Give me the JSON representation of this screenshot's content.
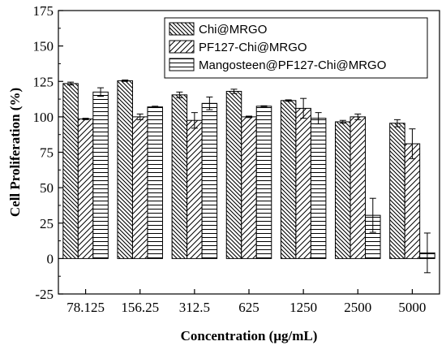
{
  "chart_data": {
    "type": "bar",
    "xlabel": "Concentration (μg/mL)",
    "ylabel": "Cell Proliferation (%)",
    "ylim": [
      -25,
      175
    ],
    "yticks": [
      -25,
      0,
      25,
      50,
      75,
      100,
      125,
      150,
      175
    ],
    "categories": [
      "78.125",
      "156.25",
      "312.5",
      "625",
      "1250",
      "2500",
      "5000"
    ],
    "legend_position": "top-right",
    "series": [
      {
        "name": "Chi@MRGO",
        "pattern": "diag-back",
        "values": [
          123.5,
          125.5,
          115.5,
          118,
          111.5,
          96.5,
          95.5
        ],
        "errors": [
          1,
          0.5,
          2,
          1.5,
          0.5,
          1,
          2.5
        ]
      },
      {
        "name": "PF127-Chi@MRGO",
        "pattern": "diag-forward",
        "values": [
          98.5,
          100,
          97.5,
          100,
          106,
          100,
          81
        ],
        "errors": [
          0.5,
          2,
          5.5,
          0.5,
          7,
          2,
          10.5
        ]
      },
      {
        "name": "Mangosteen@PF127-Chi@MRGO",
        "pattern": "horizontal",
        "values": [
          117.5,
          107,
          109.5,
          107.5,
          99,
          30.5,
          4
        ],
        "errors": [
          3,
          0.5,
          4.5,
          0.3,
          4,
          12,
          14
        ]
      }
    ]
  }
}
